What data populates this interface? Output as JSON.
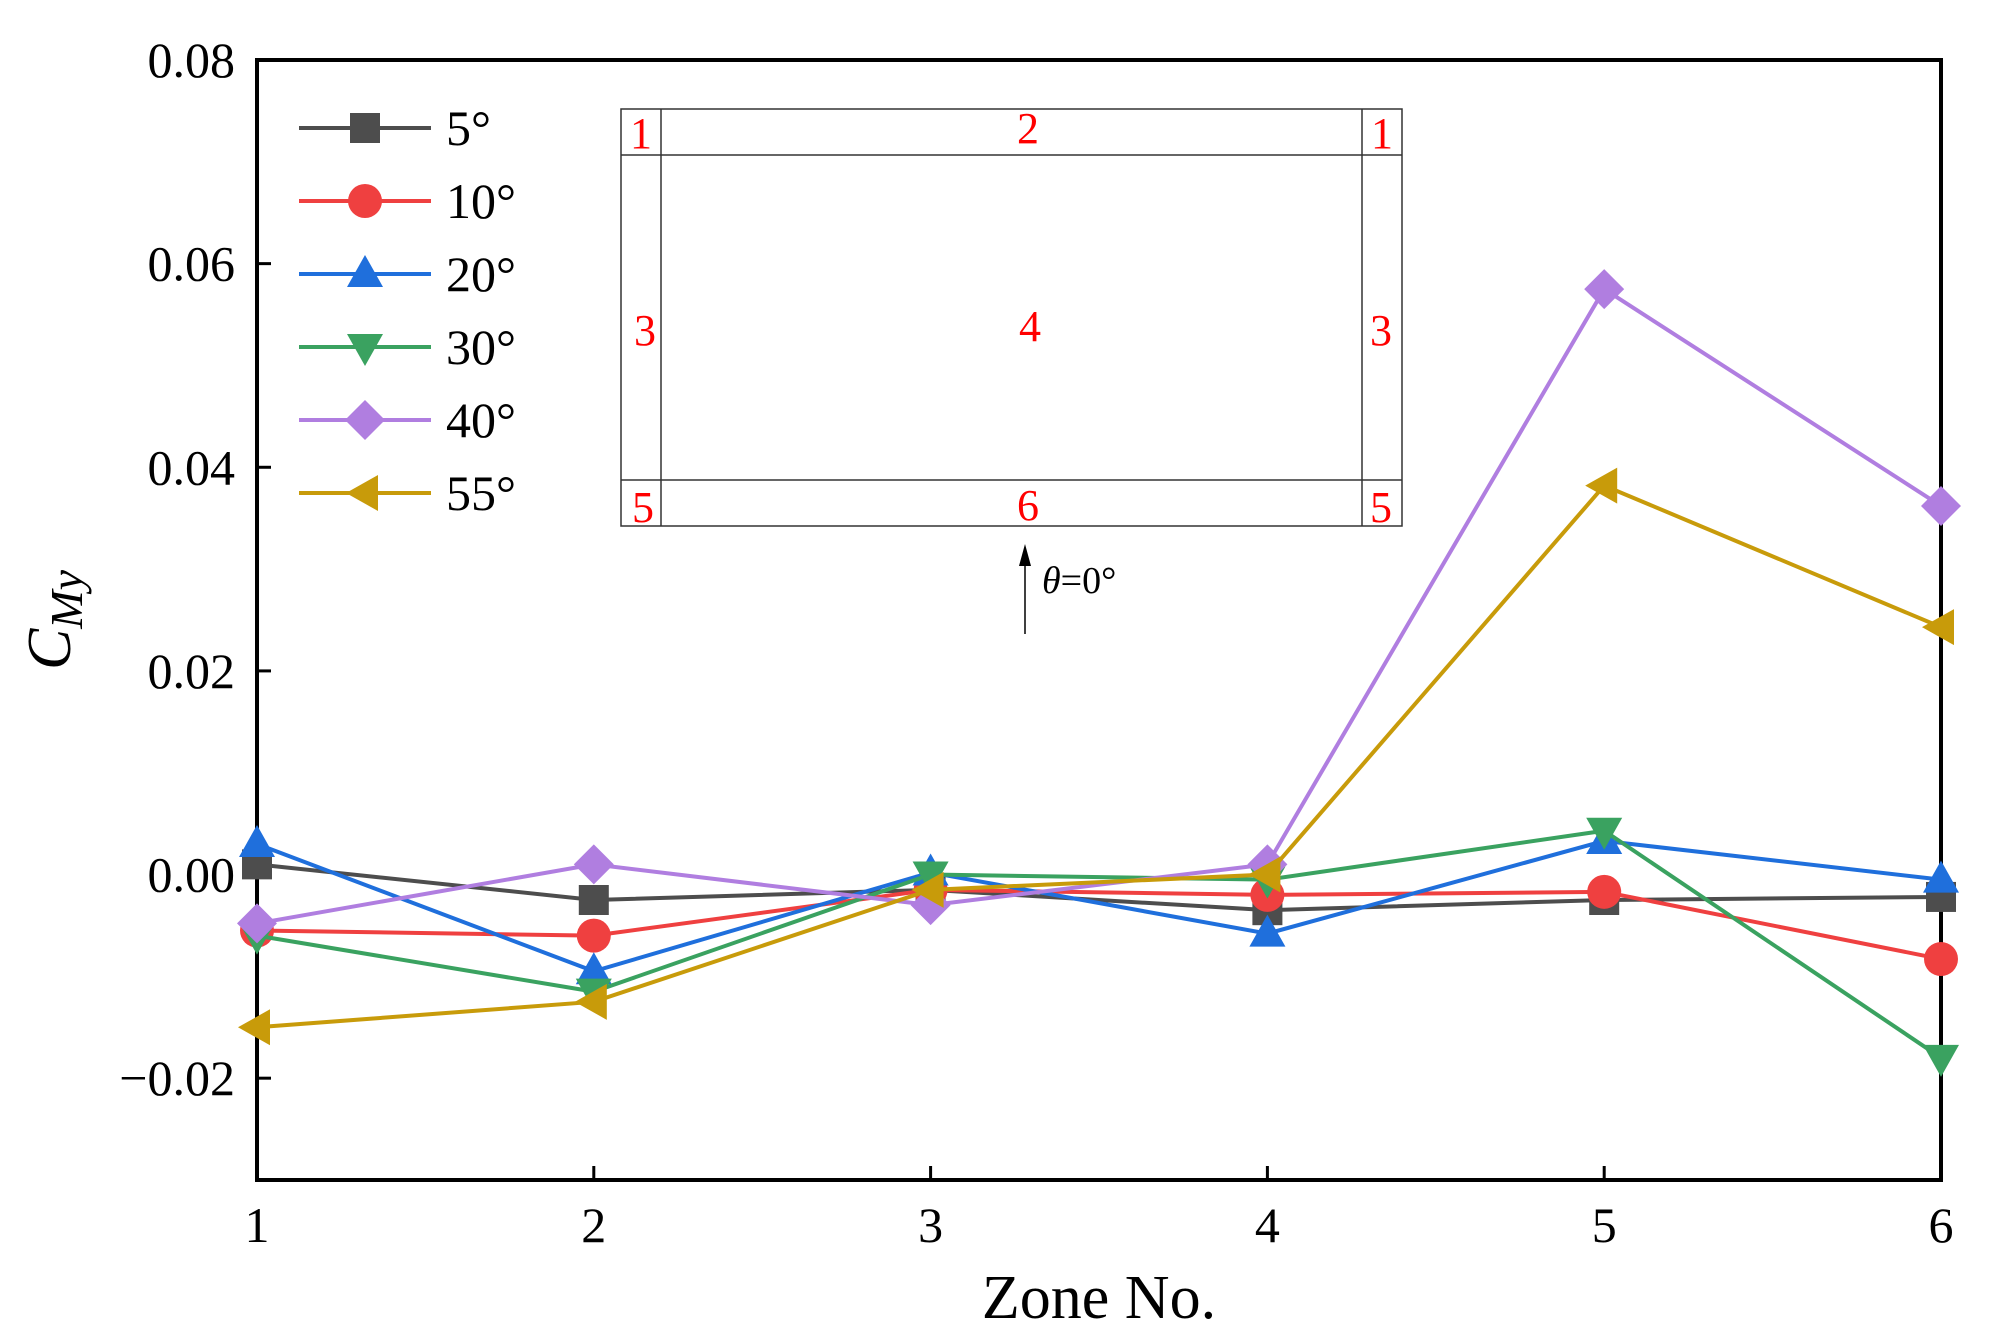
{
  "chart_data": {
    "type": "line",
    "title": "",
    "xlabel": "Zone No.",
    "ylabel": {
      "main": "C",
      "sub": "My"
    },
    "x": [
      1,
      2,
      3,
      4,
      5,
      6
    ],
    "xticks": [
      "1",
      "2",
      "3",
      "4",
      "5",
      "6"
    ],
    "ylim": [
      -0.03,
      0.08
    ],
    "yticks": [
      "−0.02",
      "0.00",
      "0.02",
      "0.04",
      "0.06",
      "0.08"
    ],
    "ytick_values": [
      -0.02,
      0.0,
      0.02,
      0.04,
      0.06,
      0.08
    ],
    "legend_position": "top-left",
    "series": [
      {
        "name": "5°",
        "color": "#4d4d4d",
        "marker": "square",
        "values": [
          0.001,
          -0.0025,
          -0.0015,
          -0.0035,
          -0.0025,
          -0.0022
        ]
      },
      {
        "name": "10°",
        "color": "#ef4040",
        "marker": "circle",
        "values": [
          -0.0055,
          -0.006,
          -0.0015,
          -0.002,
          -0.0017,
          -0.0083
        ]
      },
      {
        "name": "20°",
        "color": "#1f6fdc",
        "marker": "triangle-up",
        "values": [
          0.003,
          -0.0095,
          0.0002,
          -0.0058,
          0.0033,
          -0.0005
        ]
      },
      {
        "name": "30°",
        "color": "#3aa260",
        "marker": "triangle-down",
        "values": [
          -0.006,
          -0.0115,
          0.0,
          -0.0005,
          0.0043,
          -0.018
        ]
      },
      {
        "name": "40°",
        "color": "#b07ee0",
        "marker": "diamond",
        "values": [
          -0.0048,
          0.001,
          -0.003,
          0.001,
          0.0575,
          0.0362
        ]
      },
      {
        "name": "55°",
        "color": "#c89b0a",
        "marker": "triangle-left",
        "values": [
          -0.015,
          -0.0125,
          -0.0015,
          0.0,
          0.0382,
          0.0243
        ]
      }
    ],
    "inset": {
      "zone_labels": {
        "z1_left": "1",
        "z2": "2",
        "z1_right": "1",
        "z3_left": "3",
        "z4": "4",
        "z3_right": "3",
        "z5_left": "5",
        "z6": "6",
        "z5_right": "5"
      },
      "label_color": "#ff0000",
      "wind_theta": "θ",
      "wind_value": "=0°"
    }
  }
}
